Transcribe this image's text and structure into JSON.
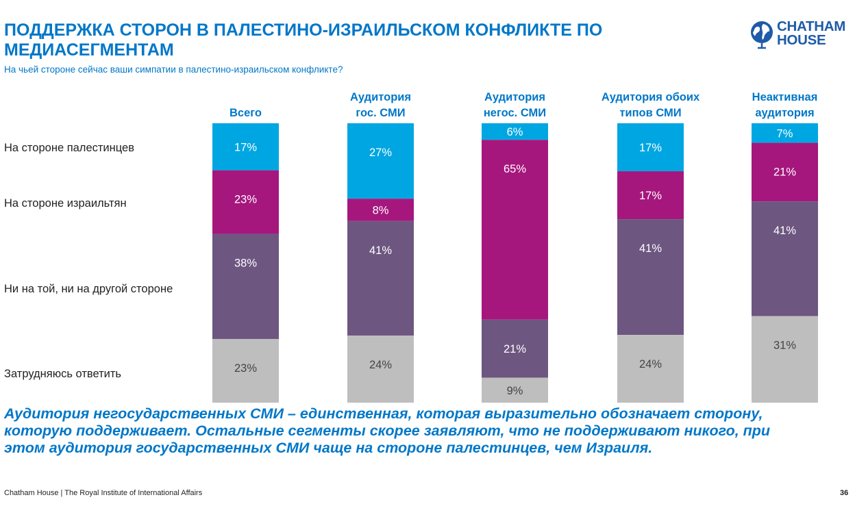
{
  "title": "ПОДДЕРЖКА СТОРОН В ПАЛЕСТИНО-ИЗРАИЛЬСКОМ КОНФЛИКТЕ ПО МЕДИАСЕГМЕНТАМ",
  "subtitle": "На чьей стороне сейчас ваши симпатии в палестино-израильском конфликте?",
  "logo": {
    "line1": "CHATHAM",
    "line2": "HOUSE",
    "icon": "globe-icon"
  },
  "conclusion": "Аудитория негосударственных СМИ – единственная, которая выразительно обозначает сторону, которую поддерживает. Остальные сегменты скорее заявляют, что не поддерживают никого, при этом аудитория государственных СМИ чаще на стороне палестинцев, чем Израиля.",
  "footer": "Chatham House  |  The Royal Institute of International Affairs",
  "page_number": "36",
  "colors": {
    "title": "#0077C8",
    "accent": "#0077C8",
    "series": [
      "#00A6E2",
      "#A5177D",
      "#6D5680",
      "#BEBEBE"
    ]
  },
  "chart_data": {
    "type": "bar",
    "stacked": true,
    "normalized": true,
    "categories": [
      "Всего",
      "Аудитория гос. СМИ",
      "Аудитория негос. СМИ",
      "Аудитория обоих типов СМИ",
      "Неактивная аудитория"
    ],
    "series": [
      {
        "name": "На стороне палестинцев",
        "values": [
          17,
          27,
          6,
          17,
          7
        ]
      },
      {
        "name": "На стороне израильтян",
        "values": [
          23,
          8,
          65,
          17,
          21
        ]
      },
      {
        "name": "Ни на той, ни на другой стороне",
        "values": [
          38,
          41,
          21,
          41,
          41
        ]
      },
      {
        "name": "Затрудняюсь ответить",
        "values": [
          23,
          24,
          9,
          24,
          31
        ]
      }
    ],
    "value_suffix": "%",
    "legend": "left"
  }
}
